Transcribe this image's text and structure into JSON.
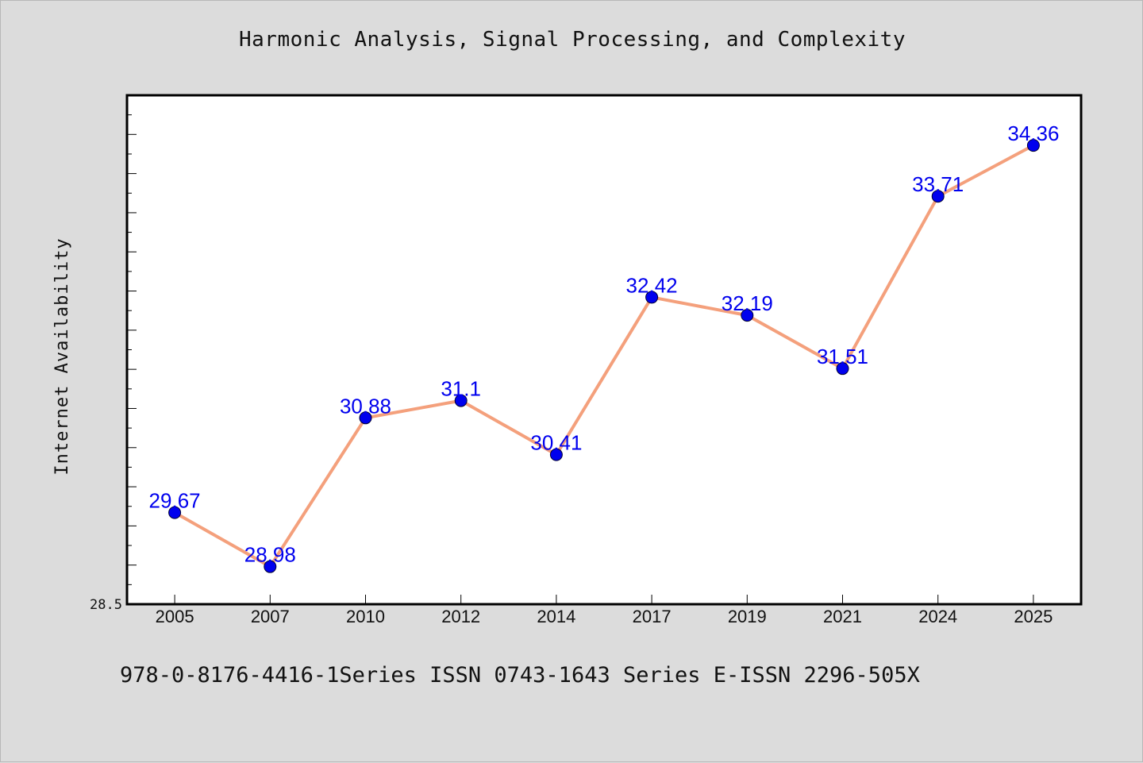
{
  "chart_data": {
    "type": "line",
    "title": "Harmonic Analysis, Signal Processing, and Complexity",
    "ylabel": "Internet Availability",
    "xlabel": "",
    "categories": [
      "2005",
      "2007",
      "2010",
      "2012",
      "2014",
      "2017",
      "2019",
      "2021",
      "2024",
      "2025"
    ],
    "series": [
      {
        "values": [
          29.67,
          28.98,
          30.88,
          31.1,
          30.41,
          32.42,
          32.19,
          31.51,
          33.71,
          34.36
        ]
      }
    ],
    "data_labels": [
      "29.67",
      "28.98",
      "30.88",
      "31.1",
      "30.41",
      "32.42",
      "32.19",
      "31.51",
      "33.71",
      "34.36"
    ],
    "ylim": [
      28.5,
      35.0
    ],
    "ytick_labels": [
      "28.5"
    ],
    "grid": false,
    "colors": {
      "line": "#f4a07c",
      "marker": "#0000ee",
      "label": "#0000ee"
    }
  },
  "footer": {
    "text": "978-0-8176-4416-1Series ISSN 0743-1643 Series E-ISSN 2296-505X"
  }
}
